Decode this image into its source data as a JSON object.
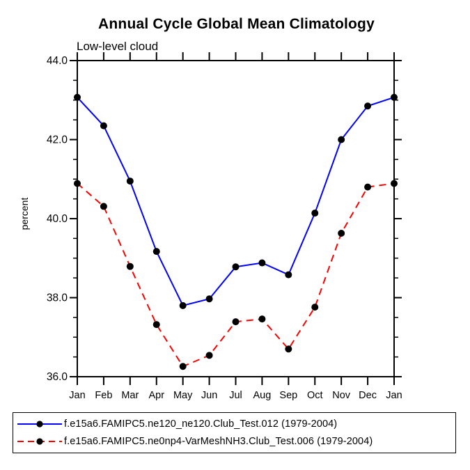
{
  "title": "Annual Cycle Global Mean Climatology",
  "subtitle": "Low-level cloud",
  "ylabel": "percent",
  "colors": {
    "series1": "#0000ff",
    "series2": "#ff0000",
    "marker": "#000000",
    "axis": "#000000",
    "background": "#ffffff"
  },
  "legend": {
    "items": [
      {
        "label": "f.e15a6.FAMIPC5.ne120_ne120.Club_Test.012 (1979-2004)",
        "color": "#0000ff",
        "style": "solid"
      },
      {
        "label": "f.e15a6.FAMIPC5.ne0np4-VarMeshNH3.Club_Test.006 (1979-2004)",
        "color": "#ff0000",
        "style": "dashed"
      }
    ]
  },
  "chart_data": {
    "type": "line",
    "title": "Annual Cycle Global Mean Climatology",
    "subtitle": "Low-level cloud",
    "xlabel": "",
    "ylabel": "percent",
    "categories": [
      "Jan",
      "Feb",
      "Mar",
      "Apr",
      "May",
      "Jun",
      "Jul",
      "Aug",
      "Sep",
      "Oct",
      "Nov",
      "Dec",
      "Jan"
    ],
    "ylim": [
      36.0,
      44.0
    ],
    "ytick_major": [
      36.0,
      38.0,
      40.0,
      42.0,
      44.0
    ],
    "ytick_labels": [
      "36.0",
      "38.0",
      "40.0",
      "42.0",
      "44.0"
    ],
    "ytick_minor_step": 0.5,
    "grid": false,
    "legend_position": "bottom",
    "series": [
      {
        "name": "f.e15a6.FAMIPC5.ne120_ne120.Club_Test.012 (1979-2004)",
        "color": "#0000ff",
        "line_style": "solid",
        "marker": "filled-circle",
        "values": [
          43.07,
          42.35,
          40.95,
          39.17,
          37.8,
          37.97,
          38.78,
          38.88,
          38.58,
          40.14,
          42.0,
          42.85,
          43.07
        ]
      },
      {
        "name": "f.e15a6.FAMIPC5.ne0np4-VarMeshNH3.Club_Test.006 (1979-2004)",
        "color": "#ff0000",
        "line_style": "dashed",
        "marker": "filled-circle",
        "values": [
          40.89,
          40.31,
          38.79,
          37.32,
          36.26,
          36.54,
          37.39,
          37.46,
          36.7,
          37.76,
          39.63,
          40.8,
          40.89
        ]
      }
    ]
  }
}
